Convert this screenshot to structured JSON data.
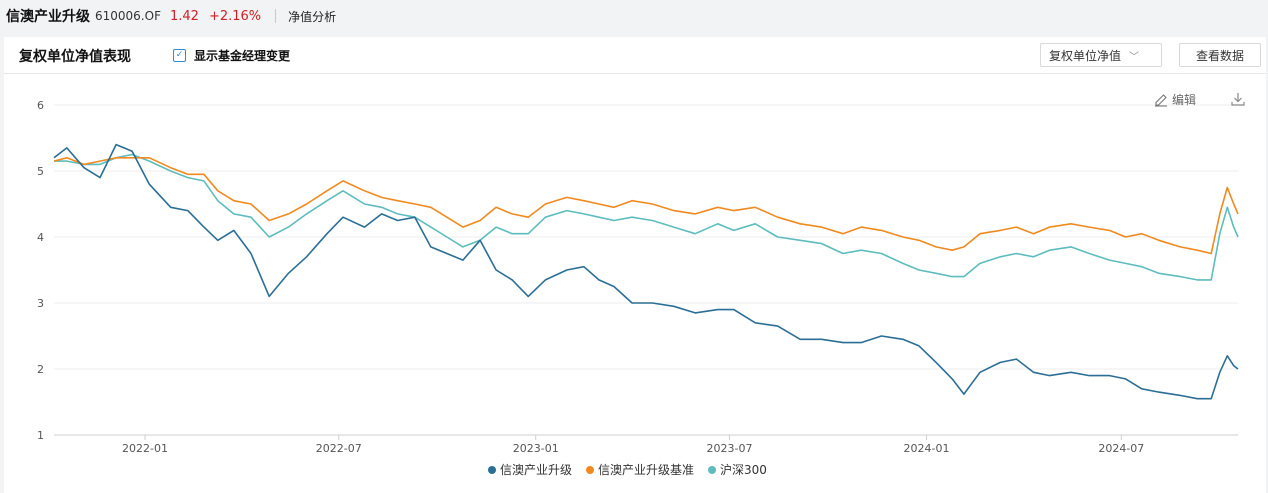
{
  "header": {
    "fund_name": "信澳产业升级",
    "fund_code": "610006.OF",
    "nav": "1.42",
    "change": "+2.16%",
    "analysis_tab": "净值分析"
  },
  "panel": {
    "title": "复权单位净值表现",
    "checkbox_label": "显示基金经理变更",
    "checkbox_checked": true,
    "select_value": "复权单位净值",
    "view_data_label": "查看数据",
    "edit_label": "编辑"
  },
  "colors": {
    "series1": "#2b6e96",
    "series2": "#f08a1f",
    "series3": "#5ebcbd",
    "nav_up": "#d0202a",
    "grid": "#ececec"
  },
  "chart_data": {
    "type": "line",
    "title": "",
    "xlabel": "",
    "ylabel": "",
    "ylim": [
      1,
      6
    ],
    "yticks": [
      1,
      2,
      3,
      4,
      5,
      6
    ],
    "xlim": [
      "2021-10-08",
      "2024-10-18"
    ],
    "xticks": [
      "2022-01",
      "2022-07",
      "2023-01",
      "2023-07",
      "2024-01",
      "2024-07"
    ],
    "grid": "horizontal",
    "legend_position": "bottom",
    "series": [
      {
        "name": "信澳产业升级",
        "points": [
          [
            "2021-10-08",
            5.2
          ],
          [
            "2021-10-20",
            5.35
          ],
          [
            "2021-11-05",
            5.05
          ],
          [
            "2021-11-20",
            4.9
          ],
          [
            "2021-12-05",
            5.4
          ],
          [
            "2021-12-20",
            5.3
          ],
          [
            "2022-01-05",
            4.8
          ],
          [
            "2022-01-25",
            4.45
          ],
          [
            "2022-02-10",
            4.4
          ],
          [
            "2022-02-25",
            4.15
          ],
          [
            "2022-03-10",
            3.95
          ],
          [
            "2022-03-25",
            4.1
          ],
          [
            "2022-04-10",
            3.75
          ],
          [
            "2022-04-27",
            3.1
          ],
          [
            "2022-05-15",
            3.45
          ],
          [
            "2022-06-01",
            3.7
          ],
          [
            "2022-06-20",
            4.05
          ],
          [
            "2022-07-05",
            4.3
          ],
          [
            "2022-07-25",
            4.15
          ],
          [
            "2022-08-10",
            4.35
          ],
          [
            "2022-08-25",
            4.25
          ],
          [
            "2022-09-10",
            4.3
          ],
          [
            "2022-09-25",
            3.85
          ],
          [
            "2022-10-10",
            3.75
          ],
          [
            "2022-10-25",
            3.65
          ],
          [
            "2022-11-10",
            3.95
          ],
          [
            "2022-11-25",
            3.5
          ],
          [
            "2022-12-10",
            3.35
          ],
          [
            "2022-12-25",
            3.1
          ],
          [
            "2023-01-10",
            3.35
          ],
          [
            "2023-01-30",
            3.5
          ],
          [
            "2023-02-15",
            3.55
          ],
          [
            "2023-03-01",
            3.35
          ],
          [
            "2023-03-15",
            3.25
          ],
          [
            "2023-04-01",
            3.0
          ],
          [
            "2023-04-20",
            3.0
          ],
          [
            "2023-05-10",
            2.95
          ],
          [
            "2023-05-30",
            2.85
          ],
          [
            "2023-06-20",
            2.9
          ],
          [
            "2023-07-05",
            2.9
          ],
          [
            "2023-07-25",
            2.7
          ],
          [
            "2023-08-15",
            2.65
          ],
          [
            "2023-09-05",
            2.45
          ],
          [
            "2023-09-25",
            2.45
          ],
          [
            "2023-10-15",
            2.4
          ],
          [
            "2023-11-01",
            2.4
          ],
          [
            "2023-11-20",
            2.5
          ],
          [
            "2023-12-10",
            2.45
          ],
          [
            "2023-12-25",
            2.35
          ],
          [
            "2024-01-10",
            2.1
          ],
          [
            "2024-01-25",
            1.85
          ],
          [
            "2024-02-05",
            1.62
          ],
          [
            "2024-02-20",
            1.95
          ],
          [
            "2024-03-10",
            2.1
          ],
          [
            "2024-03-25",
            2.15
          ],
          [
            "2024-04-10",
            1.95
          ],
          [
            "2024-04-25",
            1.9
          ],
          [
            "2024-05-15",
            1.95
          ],
          [
            "2024-06-01",
            1.9
          ],
          [
            "2024-06-20",
            1.9
          ],
          [
            "2024-07-05",
            1.85
          ],
          [
            "2024-07-20",
            1.7
          ],
          [
            "2024-08-05",
            1.65
          ],
          [
            "2024-08-25",
            1.6
          ],
          [
            "2024-09-10",
            1.55
          ],
          [
            "2024-09-23",
            1.55
          ],
          [
            "2024-10-01",
            1.95
          ],
          [
            "2024-10-08",
            2.2
          ],
          [
            "2024-10-14",
            2.05
          ],
          [
            "2024-10-18",
            2.0
          ]
        ]
      },
      {
        "name": "信澳产业升级基准",
        "points": [
          [
            "2021-10-08",
            5.15
          ],
          [
            "2021-10-20",
            5.2
          ],
          [
            "2021-11-05",
            5.1
          ],
          [
            "2021-11-20",
            5.15
          ],
          [
            "2021-12-05",
            5.2
          ],
          [
            "2021-12-20",
            5.2
          ],
          [
            "2022-01-05",
            5.2
          ],
          [
            "2022-01-25",
            5.05
          ],
          [
            "2022-02-10",
            4.95
          ],
          [
            "2022-02-25",
            4.95
          ],
          [
            "2022-03-10",
            4.7
          ],
          [
            "2022-03-25",
            4.55
          ],
          [
            "2022-04-10",
            4.5
          ],
          [
            "2022-04-27",
            4.25
          ],
          [
            "2022-05-15",
            4.35
          ],
          [
            "2022-06-01",
            4.5
          ],
          [
            "2022-06-20",
            4.7
          ],
          [
            "2022-07-05",
            4.85
          ],
          [
            "2022-07-25",
            4.7
          ],
          [
            "2022-08-10",
            4.6
          ],
          [
            "2022-08-25",
            4.55
          ],
          [
            "2022-09-10",
            4.5
          ],
          [
            "2022-09-25",
            4.45
          ],
          [
            "2022-10-10",
            4.3
          ],
          [
            "2022-10-25",
            4.15
          ],
          [
            "2022-11-10",
            4.25
          ],
          [
            "2022-11-25",
            4.45
          ],
          [
            "2022-12-10",
            4.35
          ],
          [
            "2022-12-25",
            4.3
          ],
          [
            "2023-01-10",
            4.5
          ],
          [
            "2023-01-30",
            4.6
          ],
          [
            "2023-02-15",
            4.55
          ],
          [
            "2023-03-01",
            4.5
          ],
          [
            "2023-03-15",
            4.45
          ],
          [
            "2023-04-01",
            4.55
          ],
          [
            "2023-04-20",
            4.5
          ],
          [
            "2023-05-10",
            4.4
          ],
          [
            "2023-05-30",
            4.35
          ],
          [
            "2023-06-20",
            4.45
          ],
          [
            "2023-07-05",
            4.4
          ],
          [
            "2023-07-25",
            4.45
          ],
          [
            "2023-08-15",
            4.3
          ],
          [
            "2023-09-05",
            4.2
          ],
          [
            "2023-09-25",
            4.15
          ],
          [
            "2023-10-15",
            4.05
          ],
          [
            "2023-11-01",
            4.15
          ],
          [
            "2023-11-20",
            4.1
          ],
          [
            "2023-12-10",
            4.0
          ],
          [
            "2023-12-25",
            3.95
          ],
          [
            "2024-01-10",
            3.85
          ],
          [
            "2024-01-25",
            3.8
          ],
          [
            "2024-02-05",
            3.85
          ],
          [
            "2024-02-20",
            4.05
          ],
          [
            "2024-03-10",
            4.1
          ],
          [
            "2024-03-25",
            4.15
          ],
          [
            "2024-04-10",
            4.05
          ],
          [
            "2024-04-25",
            4.15
          ],
          [
            "2024-05-15",
            4.2
          ],
          [
            "2024-06-01",
            4.15
          ],
          [
            "2024-06-20",
            4.1
          ],
          [
            "2024-07-05",
            4.0
          ],
          [
            "2024-07-20",
            4.05
          ],
          [
            "2024-08-05",
            3.95
          ],
          [
            "2024-08-25",
            3.85
          ],
          [
            "2024-09-10",
            3.8
          ],
          [
            "2024-09-23",
            3.75
          ],
          [
            "2024-10-01",
            4.35
          ],
          [
            "2024-10-08",
            4.75
          ],
          [
            "2024-10-14",
            4.5
          ],
          [
            "2024-10-18",
            4.35
          ]
        ]
      },
      {
        "name": "沪深300",
        "points": [
          [
            "2021-10-08",
            5.15
          ],
          [
            "2021-10-20",
            5.15
          ],
          [
            "2021-11-05",
            5.1
          ],
          [
            "2021-11-20",
            5.1
          ],
          [
            "2021-12-05",
            5.2
          ],
          [
            "2021-12-20",
            5.25
          ],
          [
            "2022-01-05",
            5.15
          ],
          [
            "2022-01-25",
            5.0
          ],
          [
            "2022-02-10",
            4.9
          ],
          [
            "2022-02-25",
            4.85
          ],
          [
            "2022-03-10",
            4.55
          ],
          [
            "2022-03-25",
            4.35
          ],
          [
            "2022-04-10",
            4.3
          ],
          [
            "2022-04-27",
            4.0
          ],
          [
            "2022-05-15",
            4.15
          ],
          [
            "2022-06-01",
            4.35
          ],
          [
            "2022-06-20",
            4.55
          ],
          [
            "2022-07-05",
            4.7
          ],
          [
            "2022-07-25",
            4.5
          ],
          [
            "2022-08-10",
            4.45
          ],
          [
            "2022-08-25",
            4.35
          ],
          [
            "2022-09-10",
            4.3
          ],
          [
            "2022-09-25",
            4.15
          ],
          [
            "2022-10-10",
            4.0
          ],
          [
            "2022-10-25",
            3.85
          ],
          [
            "2022-11-10",
            3.95
          ],
          [
            "2022-11-25",
            4.15
          ],
          [
            "2022-12-10",
            4.05
          ],
          [
            "2022-12-25",
            4.05
          ],
          [
            "2023-01-10",
            4.3
          ],
          [
            "2023-01-30",
            4.4
          ],
          [
            "2023-02-15",
            4.35
          ],
          [
            "2023-03-01",
            4.3
          ],
          [
            "2023-03-15",
            4.25
          ],
          [
            "2023-04-01",
            4.3
          ],
          [
            "2023-04-20",
            4.25
          ],
          [
            "2023-05-10",
            4.15
          ],
          [
            "2023-05-30",
            4.05
          ],
          [
            "2023-06-20",
            4.2
          ],
          [
            "2023-07-05",
            4.1
          ],
          [
            "2023-07-25",
            4.2
          ],
          [
            "2023-08-15",
            4.0
          ],
          [
            "2023-09-05",
            3.95
          ],
          [
            "2023-09-25",
            3.9
          ],
          [
            "2023-10-15",
            3.75
          ],
          [
            "2023-11-01",
            3.8
          ],
          [
            "2023-11-20",
            3.75
          ],
          [
            "2023-12-10",
            3.6
          ],
          [
            "2023-12-25",
            3.5
          ],
          [
            "2024-01-10",
            3.45
          ],
          [
            "2024-01-25",
            3.4
          ],
          [
            "2024-02-05",
            3.4
          ],
          [
            "2024-02-20",
            3.6
          ],
          [
            "2024-03-10",
            3.7
          ],
          [
            "2024-03-25",
            3.75
          ],
          [
            "2024-04-10",
            3.7
          ],
          [
            "2024-04-25",
            3.8
          ],
          [
            "2024-05-15",
            3.85
          ],
          [
            "2024-06-01",
            3.75
          ],
          [
            "2024-06-20",
            3.65
          ],
          [
            "2024-07-05",
            3.6
          ],
          [
            "2024-07-20",
            3.55
          ],
          [
            "2024-08-05",
            3.45
          ],
          [
            "2024-08-25",
            3.4
          ],
          [
            "2024-09-10",
            3.35
          ],
          [
            "2024-09-23",
            3.35
          ],
          [
            "2024-10-01",
            4.05
          ],
          [
            "2024-10-08",
            4.45
          ],
          [
            "2024-10-14",
            4.15
          ],
          [
            "2024-10-18",
            4.0
          ]
        ]
      }
    ]
  }
}
